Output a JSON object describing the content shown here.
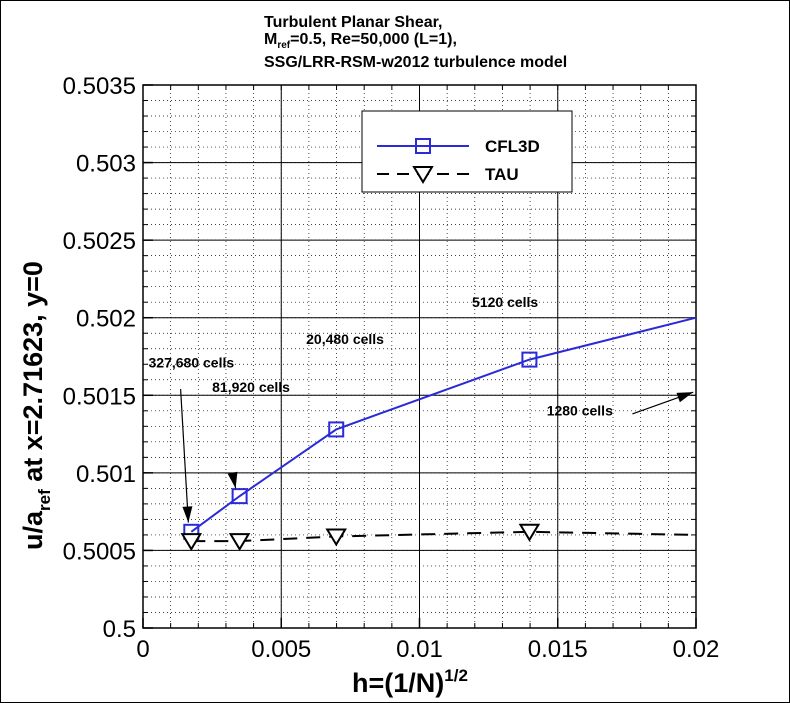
{
  "title": {
    "line1": "Turbulent Planar Shear,",
    "line2_pre": "M",
    "line2_sub": "ref",
    "line2_post": "=0.5, Re=50,000 (L=1),",
    "line3": "SSG/LRR-RSM-w2012 turbulence model"
  },
  "chart_data": {
    "type": "line",
    "xlabel": "h=(1/N)",
    "xlabel_sup": "1/2",
    "ylabel_pre": "u/a",
    "ylabel_sub": "ref",
    "ylabel_post": " at x=2.71623, y=0",
    "xlim": [
      0,
      0.02
    ],
    "ylim": [
      0.5,
      0.5035
    ],
    "xticks": [
      0,
      0.005,
      0.01,
      0.015,
      0.02
    ],
    "xtick_labels": [
      "0",
      "0.005",
      "0.01",
      "0.015",
      "0.02"
    ],
    "yticks": [
      0.5,
      0.5005,
      0.501,
      0.5015,
      0.502,
      0.5025,
      0.503,
      0.5035
    ],
    "ytick_labels": [
      "0.5",
      "0.5005",
      "0.501",
      "0.5015",
      "0.502",
      "0.5025",
      "0.503",
      "0.5035"
    ],
    "grid": true,
    "series": [
      {
        "name": "CFL3D",
        "color": "#2a2ad8",
        "marker": "square",
        "dash": "solid",
        "x": [
          0.00174693,
          0.00349386,
          0.00698771,
          0.0139754,
          0.02
        ],
        "y": [
          0.50062,
          0.50085,
          0.50128,
          0.50173,
          0.502
        ],
        "marker_count": 4
      },
      {
        "name": "TAU",
        "color": "#000000",
        "marker": "triangle-down",
        "dash": "dashed",
        "x": [
          0.00174693,
          0.00349386,
          0.00698771,
          0.0139754,
          0.02
        ],
        "y": [
          0.50056,
          0.50056,
          0.50059,
          0.50062,
          0.5006
        ],
        "marker_count": 4
      }
    ],
    "annotations": [
      {
        "text": "327,680 cells",
        "tx": 0.0002,
        "ty": 0.50168,
        "ax": 0.00136,
        "ay": 0.50154,
        "hx": 0.00164,
        "hy": 0.50068
      },
      {
        "text": "81,920 cells",
        "tx": 0.0025,
        "ty": 0.50152,
        "ax": 0.00325,
        "ay": 0.50099,
        "hx": 0.00335,
        "hy": 0.5009
      },
      {
        "text": "20,480 cells",
        "tx": 0.0059,
        "ty": 0.50183
      },
      {
        "text": "5120 cells",
        "tx": 0.0119,
        "ty": 0.50207
      },
      {
        "text": "1280 cells",
        "tx": 0.0146,
        "ty": 0.50137,
        "ax": 0.0177,
        "ay": 0.50138,
        "hx": 0.0199,
        "hy": 0.50152
      }
    ],
    "legend": {
      "position": "top-right"
    }
  }
}
